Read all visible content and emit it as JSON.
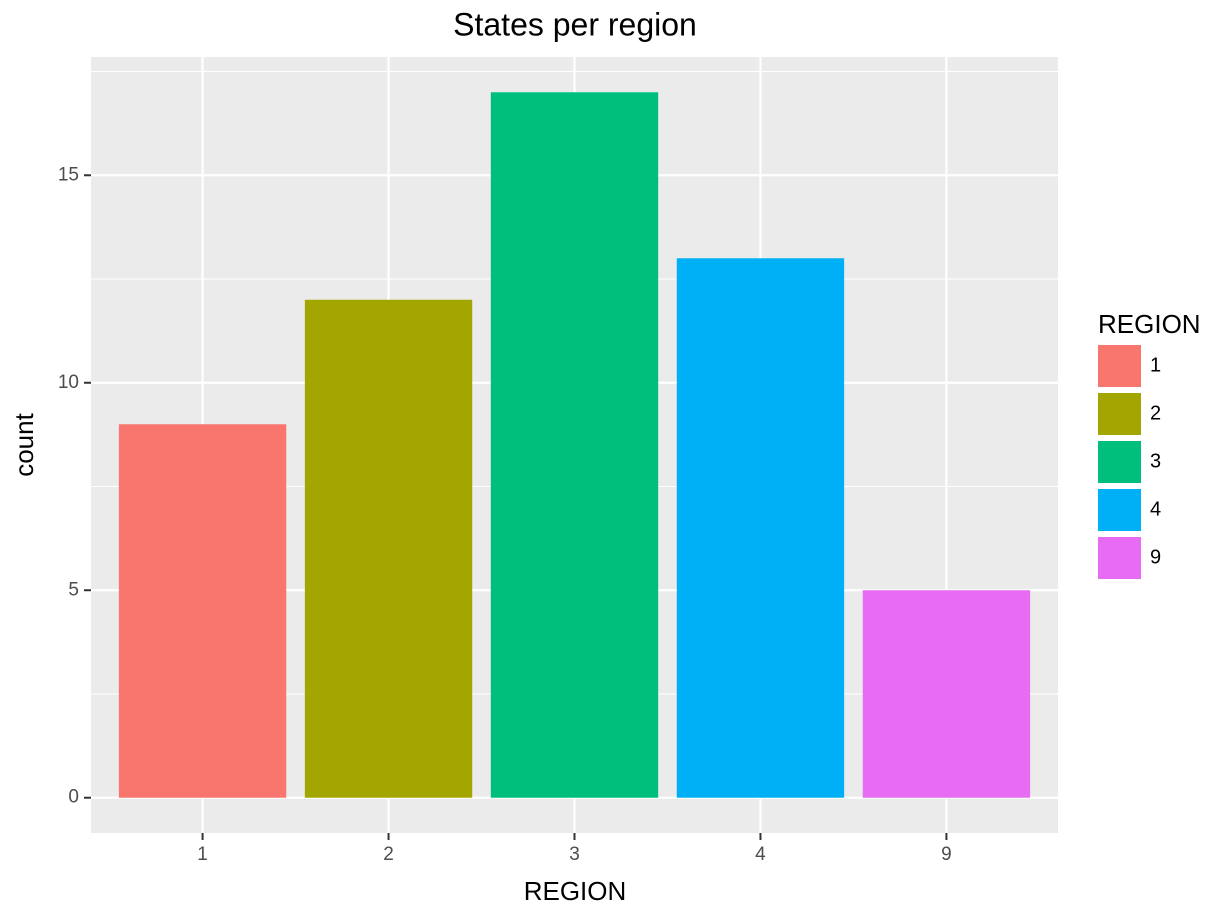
{
  "chart_data": {
    "type": "bar",
    "title": "States per region",
    "x_label": "REGION",
    "y_label": "count",
    "categories": [
      "1",
      "2",
      "3",
      "4",
      "9"
    ],
    "values": [
      9,
      12,
      17,
      13,
      5
    ],
    "colors": [
      "#f8766d",
      "#a3a500",
      "#00bf7d",
      "#00b0f6",
      "#e76bf3"
    ],
    "ylim": [
      -0.85,
      17.85
    ],
    "yticks": [
      0,
      5,
      10,
      15
    ],
    "y_minor_gridlines": [
      2.5,
      7.5,
      12.5,
      17.5
    ],
    "grid": true,
    "legend_title": "REGION",
    "legend_position": "right"
  }
}
